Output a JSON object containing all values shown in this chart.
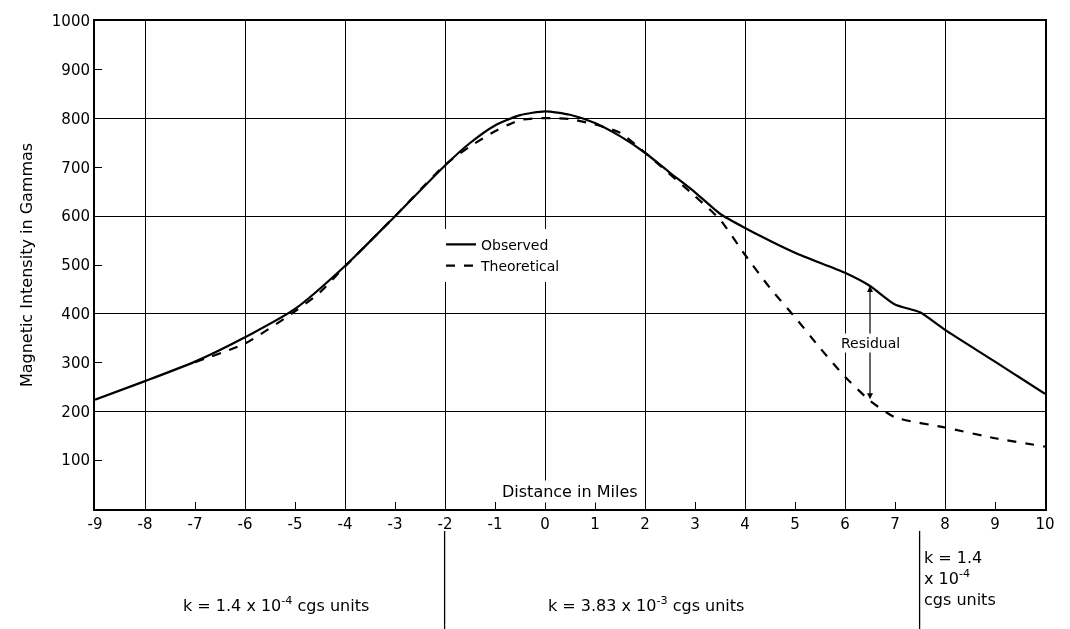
{
  "chart_data": {
    "type": "line",
    "xlabel": "Distance in Miles",
    "ylabel": "Magnetic Intensity in Gammas",
    "xlim": [
      -9,
      10
    ],
    "xticks": [
      -9,
      -8,
      -7,
      -6,
      -5,
      -4,
      -3,
      -2,
      -1,
      0,
      1,
      2,
      3,
      4,
      5,
      6,
      7,
      8,
      9,
      10
    ],
    "ylim": [
      0,
      1000
    ],
    "yticks": [
      100,
      200,
      300,
      400,
      500,
      600,
      700,
      800,
      900,
      1000
    ],
    "grid": true,
    "legend": "center",
    "marker": "none",
    "series": [
      {
        "name": "Observed",
        "color": "#000000",
        "line_style": "solid",
        "x": [
          -9,
          -8,
          -7,
          -6,
          -5,
          -4,
          -3,
          -2,
          -1.5,
          -1,
          -0.5,
          0,
          0.5,
          1,
          1.5,
          2,
          2.5,
          3,
          3.5,
          4,
          5,
          6,
          6.5,
          7,
          7.5,
          8,
          9,
          10
        ],
        "values": [
          224,
          262,
          302,
          352,
          410,
          498,
          600,
          704,
          750,
          786,
          807,
          815,
          808,
          791,
          764,
          730,
          689,
          649,
          605,
          576,
          525,
          484,
          457,
          419,
          403,
          367,
          302,
          236
        ]
      },
      {
        "name": "Theoretical",
        "color": "#000000",
        "line_style": "dashed",
        "x": [
          -7,
          -6,
          -5,
          -4.5,
          -4,
          -3,
          -2,
          -1.5,
          -1,
          -0.5,
          0,
          0.5,
          1,
          1.5,
          2,
          3,
          3.5,
          4,
          4.5,
          5,
          5.5,
          6,
          6.5,
          7,
          8,
          9,
          10
        ],
        "values": [
          301,
          339,
          405,
          444,
          497,
          600,
          705,
          743,
          774,
          797,
          801,
          799,
          788,
          771,
          730,
          641,
          593,
          521,
          453,
          393,
          330,
          271,
          222,
          188,
          167,
          145,
          128
        ]
      }
    ],
    "annotations": [
      "Residual",
      "k = 1.4 x 10$^{-4}$ cgs units",
      "k = 3.83 x 10$^{-3}$ cgs units",
      "k = 1.4\nx 10$^{-4}$\ncgs units"
    ]
  }
}
